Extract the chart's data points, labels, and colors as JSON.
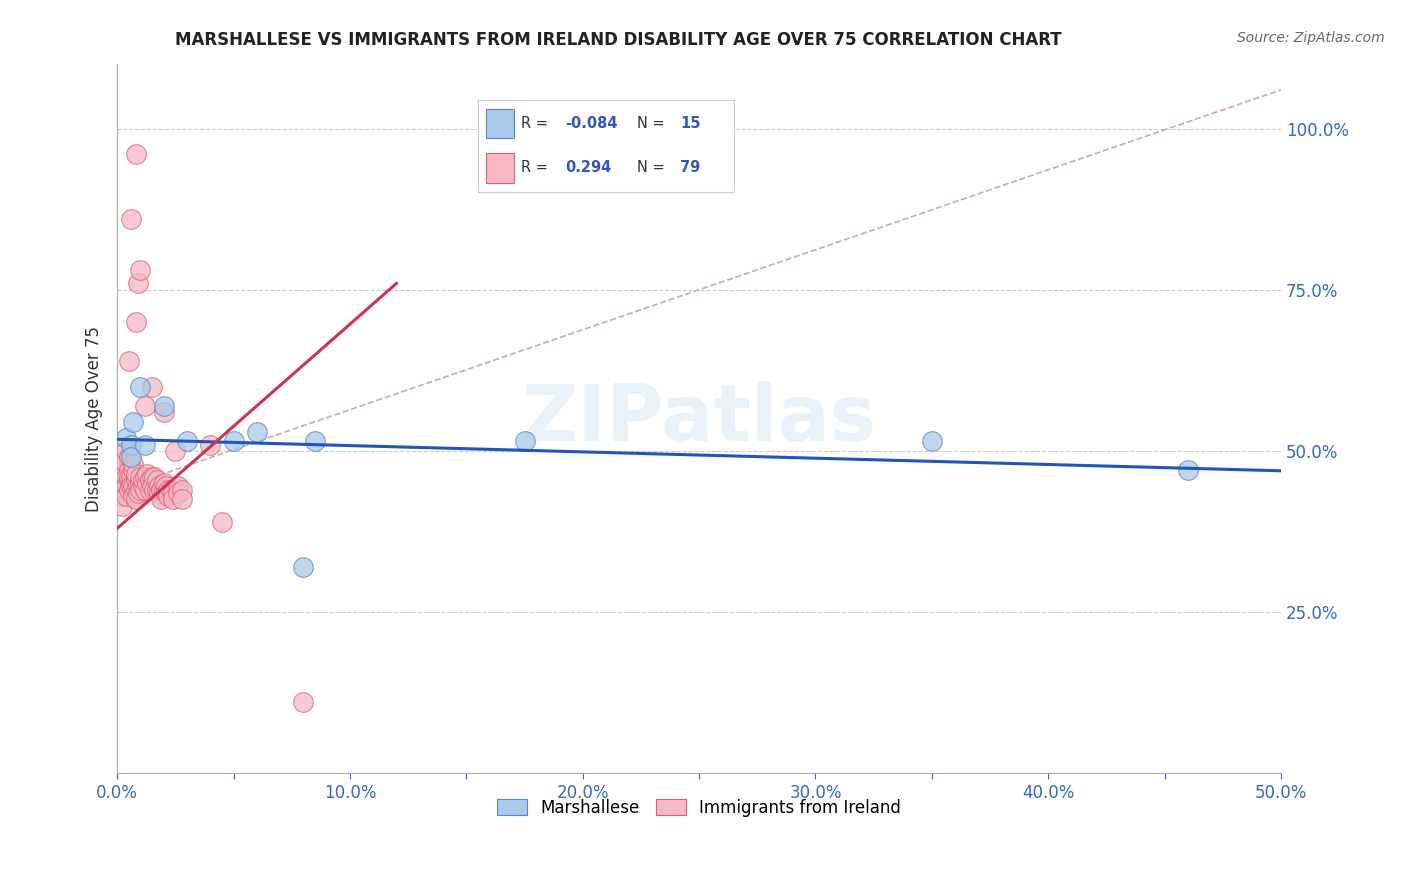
{
  "title": "MARSHALLESE VS IMMIGRANTS FROM IRELAND DISABILITY AGE OVER 75 CORRELATION CHART",
  "source": "Source: ZipAtlas.com",
  "ylabel": "Disability Age Over 75",
  "xlim": [
    0.0,
    0.5
  ],
  "ylim": [
    0.0,
    1.1
  ],
  "xtick_labels": [
    "0.0%",
    "",
    "10.0%",
    "",
    "20.0%",
    "",
    "30.0%",
    "",
    "40.0%",
    "",
    "50.0%"
  ],
  "xtick_vals": [
    0.0,
    0.05,
    0.1,
    0.15,
    0.2,
    0.25,
    0.3,
    0.35,
    0.4,
    0.45,
    0.5
  ],
  "ytick_labels": [
    "25.0%",
    "50.0%",
    "75.0%",
    "100.0%"
  ],
  "ytick_vals": [
    0.25,
    0.5,
    0.75,
    1.0
  ],
  "legend_blue_r": "-0.084",
  "legend_blue_n": "15",
  "legend_pink_r": "0.294",
  "legend_pink_n": "79",
  "blue_fill_color": "#aac9e8",
  "pink_fill_color": "#f5b8c4",
  "blue_edge_color": "#5588cc",
  "pink_edge_color": "#e06070",
  "blue_line_color": "#2255bb",
  "pink_line_color": "#cc3355",
  "dash_line_color": "#ccaaaa",
  "watermark": "ZIPatlas",
  "blue_points": [
    [
      0.004,
      0.52
    ],
    [
      0.006,
      0.51
    ],
    [
      0.006,
      0.49
    ],
    [
      0.007,
      0.545
    ],
    [
      0.01,
      0.6
    ],
    [
      0.012,
      0.51
    ],
    [
      0.02,
      0.57
    ],
    [
      0.03,
      0.515
    ],
    [
      0.05,
      0.515
    ],
    [
      0.06,
      0.53
    ],
    [
      0.08,
      0.32
    ],
    [
      0.085,
      0.515
    ],
    [
      0.175,
      0.515
    ],
    [
      0.35,
      0.515
    ],
    [
      0.46,
      0.47
    ]
  ],
  "pink_points": [
    [
      0.001,
      0.48
    ],
    [
      0.001,
      0.46
    ],
    [
      0.002,
      0.445
    ],
    [
      0.002,
      0.465
    ],
    [
      0.002,
      0.43
    ],
    [
      0.002,
      0.415
    ],
    [
      0.003,
      0.44
    ],
    [
      0.003,
      0.455
    ],
    [
      0.003,
      0.47
    ],
    [
      0.003,
      0.485
    ],
    [
      0.004,
      0.5
    ],
    [
      0.004,
      0.46
    ],
    [
      0.004,
      0.445
    ],
    [
      0.004,
      0.43
    ],
    [
      0.005,
      0.455
    ],
    [
      0.005,
      0.44
    ],
    [
      0.005,
      0.47
    ],
    [
      0.005,
      0.46
    ],
    [
      0.005,
      0.49
    ],
    [
      0.006,
      0.45
    ],
    [
      0.006,
      0.46
    ],
    [
      0.006,
      0.445
    ],
    [
      0.007,
      0.47
    ],
    [
      0.007,
      0.48
    ],
    [
      0.007,
      0.445
    ],
    [
      0.007,
      0.43
    ],
    [
      0.008,
      0.455
    ],
    [
      0.008,
      0.465
    ],
    [
      0.008,
      0.44
    ],
    [
      0.008,
      0.425
    ],
    [
      0.009,
      0.445
    ],
    [
      0.009,
      0.435
    ],
    [
      0.01,
      0.45
    ],
    [
      0.01,
      0.46
    ],
    [
      0.01,
      0.44
    ],
    [
      0.011,
      0.445
    ],
    [
      0.011,
      0.455
    ],
    [
      0.012,
      0.44
    ],
    [
      0.012,
      0.46
    ],
    [
      0.013,
      0.45
    ],
    [
      0.013,
      0.465
    ],
    [
      0.014,
      0.455
    ],
    [
      0.014,
      0.44
    ],
    [
      0.015,
      0.46
    ],
    [
      0.015,
      0.445
    ],
    [
      0.016,
      0.46
    ],
    [
      0.016,
      0.44
    ],
    [
      0.017,
      0.455
    ],
    [
      0.017,
      0.44
    ],
    [
      0.018,
      0.445
    ],
    [
      0.018,
      0.435
    ],
    [
      0.019,
      0.44
    ],
    [
      0.019,
      0.425
    ],
    [
      0.02,
      0.44
    ],
    [
      0.02,
      0.45
    ],
    [
      0.021,
      0.445
    ],
    [
      0.021,
      0.435
    ],
    [
      0.022,
      0.44
    ],
    [
      0.022,
      0.43
    ],
    [
      0.023,
      0.44
    ],
    [
      0.024,
      0.435
    ],
    [
      0.024,
      0.425
    ],
    [
      0.025,
      0.5
    ],
    [
      0.026,
      0.445
    ],
    [
      0.026,
      0.435
    ],
    [
      0.028,
      0.44
    ],
    [
      0.028,
      0.425
    ],
    [
      0.005,
      0.64
    ],
    [
      0.008,
      0.7
    ],
    [
      0.012,
      0.57
    ],
    [
      0.015,
      0.6
    ],
    [
      0.02,
      0.56
    ],
    [
      0.006,
      0.86
    ],
    [
      0.008,
      0.96
    ],
    [
      0.009,
      0.76
    ],
    [
      0.01,
      0.78
    ],
    [
      0.04,
      0.51
    ],
    [
      0.045,
      0.39
    ],
    [
      0.08,
      0.11
    ]
  ]
}
